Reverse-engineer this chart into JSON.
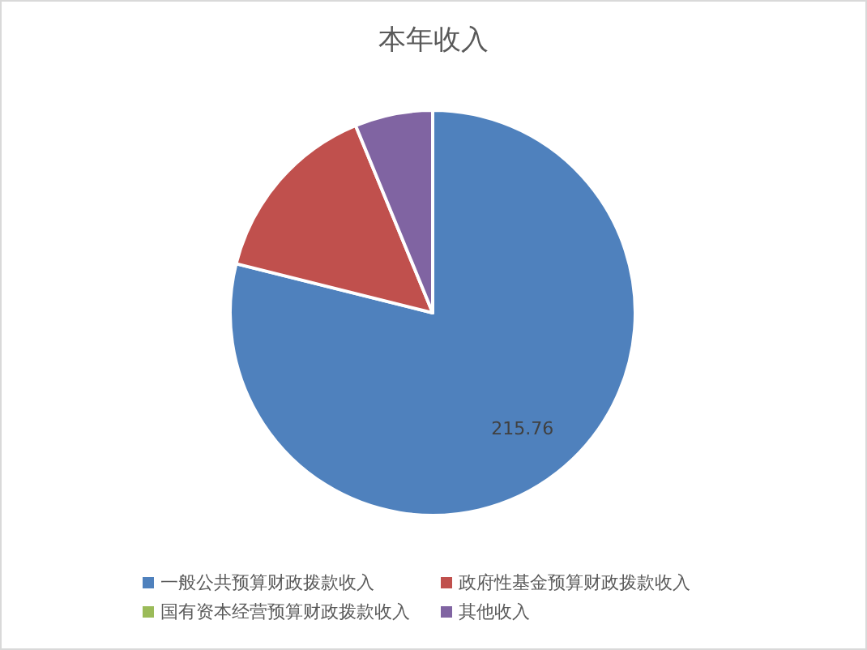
{
  "chart_data": {
    "type": "pie",
    "title": "本年收入",
    "categories": [
      "一般公共预算财政拨款收入",
      "政府性基金预算财政拨款收入",
      "国有资本经营预算财政拨款收入",
      "其他收入"
    ],
    "values": [
      215.76,
      40.7,
      0,
      17.0
    ],
    "value_labels": [
      "215.76",
      null,
      null,
      null
    ],
    "colors": [
      "#4f81bd",
      "#c0504d",
      "#9bbb59",
      "#8064a2"
    ],
    "legend": "bottom"
  }
}
